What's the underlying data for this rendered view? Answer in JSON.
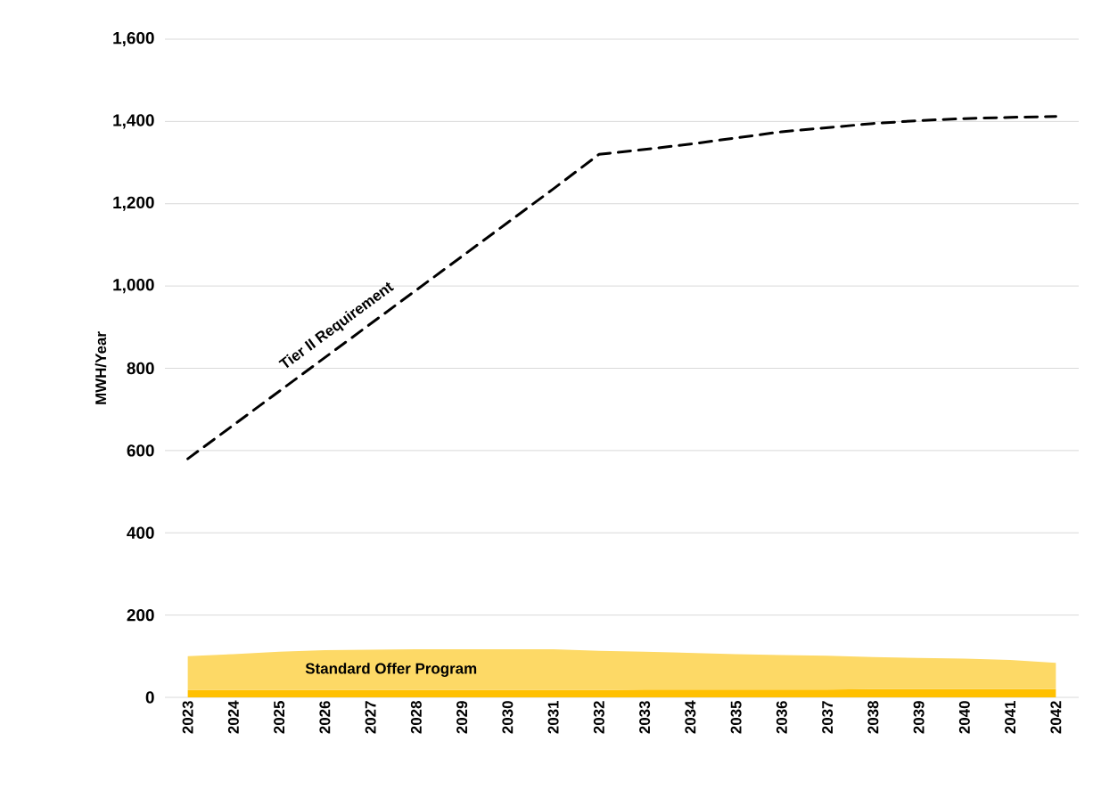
{
  "chart_data": {
    "type": "line",
    "ylabel": "MWH/Year",
    "categories": [
      "2023",
      "2024",
      "2025",
      "2026",
      "2027",
      "2028",
      "2029",
      "2030",
      "2031",
      "2032",
      "2033",
      "2034",
      "2035",
      "2036",
      "2037",
      "2038",
      "2039",
      "2040",
      "2041",
      "2042"
    ],
    "stacked": true,
    "legend": false,
    "grid": "y",
    "ylim": [
      0,
      1600
    ],
    "yticks": [
      {
        "value": 0,
        "label": "0"
      },
      {
        "value": 200,
        "label": "200"
      },
      {
        "value": 400,
        "label": "400"
      },
      {
        "value": 600,
        "label": "600"
      },
      {
        "value": 800,
        "label": "800"
      },
      {
        "value": 1000,
        "label": "1,000"
      },
      {
        "value": 1200,
        "label": "1,200"
      },
      {
        "value": 1400,
        "label": "1,400"
      },
      {
        "value": 1600,
        "label": "1,600"
      }
    ],
    "series": [
      {
        "type": "area",
        "color": "#ffc000",
        "values": [
          18,
          18,
          18,
          18,
          18,
          18,
          18,
          18,
          18,
          18,
          19,
          19,
          19,
          19,
          19,
          20,
          20,
          20,
          20,
          20
        ]
      },
      {
        "type": "area",
        "name": "Standard Offer Program",
        "color": "#fdd966",
        "values": [
          82,
          87,
          93,
          97,
          98,
          99,
          99,
          99,
          99,
          95,
          92,
          89,
          86,
          84,
          82,
          78,
          76,
          74,
          71,
          64
        ]
      },
      {
        "name": "Tier II Requirement",
        "color": "#000000",
        "line_style": "dashed",
        "values": [
          580,
          662,
          744,
          826,
          908,
          990,
          1072,
          1154,
          1236,
          1320,
          1332,
          1345,
          1360,
          1375,
          1385,
          1395,
          1402,
          1407,
          1410,
          1412
        ]
      }
    ]
  }
}
